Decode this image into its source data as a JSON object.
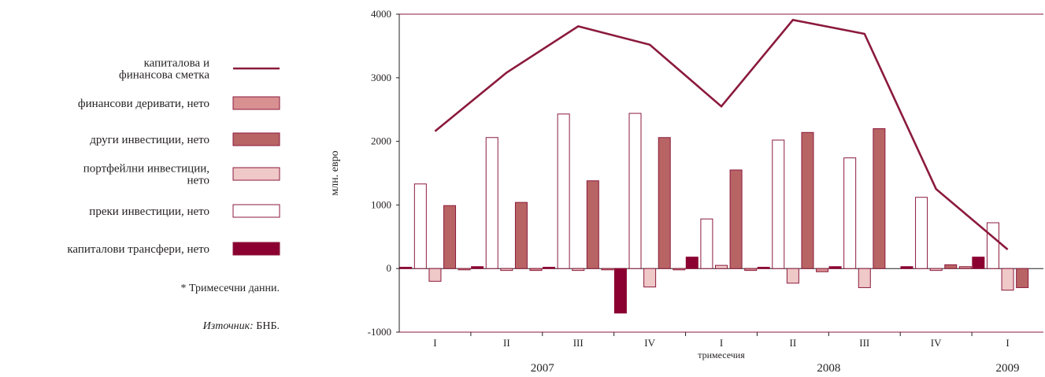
{
  "chart_data": {
    "type": "bar",
    "ylabel": "млн. евро",
    "xlabel": "тримесечия",
    "ylim": [
      -1000,
      4000
    ],
    "yticks": [
      -1000,
      0,
      1000,
      2000,
      3000,
      4000
    ],
    "categories": [
      "I",
      "II",
      "III",
      "IV",
      "I",
      "II",
      "III",
      "IV",
      "I"
    ],
    "years": [
      {
        "label": "2007",
        "start": 0,
        "end": 3
      },
      {
        "label": "2008",
        "start": 4,
        "end": 7
      },
      {
        "label": "2009",
        "start": 8,
        "end": 8
      }
    ],
    "series": [
      {
        "name": "капиталови трансфери, нето",
        "kind": "bar",
        "color": "#8b0030",
        "fill": "#8b0030",
        "values": [
          20,
          30,
          20,
          -700,
          180,
          20,
          30,
          30,
          180
        ]
      },
      {
        "name": "преки инвестиции, нето",
        "kind": "bar",
        "color": "#8b1a3c",
        "fill": "#ffffff",
        "values": [
          1330,
          2060,
          2430,
          2440,
          780,
          2020,
          1740,
          1120,
          720
        ]
      },
      {
        "name": "портфейлни инвестиции, нето",
        "kind": "bar",
        "color": "#8b1a3c",
        "fill": "#efc8c8",
        "values": [
          -200,
          -30,
          -30,
          -290,
          50,
          -230,
          -300,
          -30,
          -340
        ]
      },
      {
        "name": "други инвестиции, нето",
        "kind": "bar",
        "color": "#8b1a3c",
        "fill": "#b86464",
        "values": [
          990,
          1040,
          1380,
          2060,
          1550,
          2140,
          2200,
          60,
          -300
        ]
      },
      {
        "name": "финансови деривати, нето",
        "kind": "bar",
        "color": "#8b1a3c",
        "fill": "#d89090",
        "values": [
          -20,
          -30,
          -20,
          -20,
          -30,
          -50,
          null,
          30,
          null
        ]
      },
      {
        "name": "капиталова и финансова сметка",
        "kind": "line",
        "color": "#8b1a3c",
        "values": [
          2160,
          3080,
          3810,
          3520,
          2550,
          3910,
          3690,
          1250,
          300
        ]
      }
    ],
    "legend": [
      {
        "label_lines": [
          "капиталова и",
          "финансова сметка"
        ],
        "kind": "line",
        "fill": "#8b1a3c"
      },
      {
        "label_lines": [
          "финансови деривати, нето"
        ],
        "kind": "box",
        "fill": "#d89090"
      },
      {
        "label_lines": [
          "други инвестиции, нето"
        ],
        "kind": "box",
        "fill": "#b86464"
      },
      {
        "label_lines": [
          "портфейлни инвестиции,",
          "нето"
        ],
        "kind": "box",
        "fill": "#efc8c8"
      },
      {
        "label_lines": [
          "преки инвестиции, нето"
        ],
        "kind": "box",
        "fill": "#ffffff"
      },
      {
        "label_lines": [
          "капиталови трансфери, нето"
        ],
        "kind": "box",
        "fill": "#8b0030"
      }
    ],
    "note": "* Тримесечни данни.",
    "source_prefix": "Източник:",
    "source_text": " БНБ.",
    "frame_color": "#8b1a3c"
  }
}
